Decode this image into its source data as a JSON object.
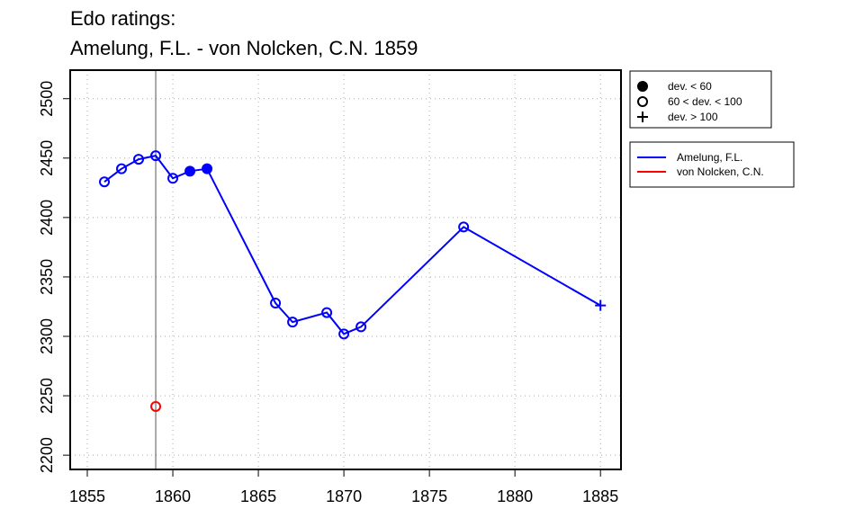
{
  "title_line1": "Edo ratings:",
  "title_line2": "Amelung, F.L. - von Nolcken, C.N. 1859",
  "chart_data": {
    "type": "line",
    "xlim": [
      1855,
      1885
    ],
    "ylim": [
      2200,
      2500
    ],
    "x_ticks": [
      1855,
      1860,
      1865,
      1870,
      1875,
      1880,
      1885
    ],
    "y_ticks": [
      2200,
      2250,
      2300,
      2350,
      2400,
      2450,
      2500
    ],
    "grid": true,
    "reference_year": 1859,
    "series": [
      {
        "name": "Amelung, F.L.",
        "color": "#0000ff",
        "points": [
          {
            "x": 1856,
            "y": 2430,
            "dev": "60 < dev. < 100"
          },
          {
            "x": 1857,
            "y": 2441,
            "dev": "60 < dev. < 100"
          },
          {
            "x": 1858,
            "y": 2449,
            "dev": "60 < dev. < 100"
          },
          {
            "x": 1859,
            "y": 2452,
            "dev": "60 < dev. < 100"
          },
          {
            "x": 1860,
            "y": 2433,
            "dev": "60 < dev. < 100"
          },
          {
            "x": 1861,
            "y": 2439,
            "dev": "dev. < 60"
          },
          {
            "x": 1862,
            "y": 2441,
            "dev": "dev. < 60"
          },
          {
            "x": 1866,
            "y": 2328,
            "dev": "60 < dev. < 100"
          },
          {
            "x": 1867,
            "y": 2312,
            "dev": "60 < dev. < 100"
          },
          {
            "x": 1869,
            "y": 2320,
            "dev": "60 < dev. < 100"
          },
          {
            "x": 1870,
            "y": 2302,
            "dev": "60 < dev. < 100"
          },
          {
            "x": 1871,
            "y": 2308,
            "dev": "60 < dev. < 100"
          },
          {
            "x": 1877,
            "y": 2392,
            "dev": "60 < dev. < 100"
          },
          {
            "x": 1885,
            "y": 2326,
            "dev": "dev. > 100"
          }
        ]
      },
      {
        "name": "von Nolcken, C.N.",
        "color": "#ff0000",
        "points": [
          {
            "x": 1859,
            "y": 2241,
            "dev": "60 < dev. < 100"
          }
        ]
      }
    ],
    "legend_symbols": [
      {
        "label": "dev. < 60",
        "symbol": "filled-circle"
      },
      {
        "label": "60 < dev. < 100",
        "symbol": "open-circle"
      },
      {
        "label": "dev. > 100",
        "symbol": "plus"
      }
    ],
    "legend_position": "top-right, outside plot"
  }
}
